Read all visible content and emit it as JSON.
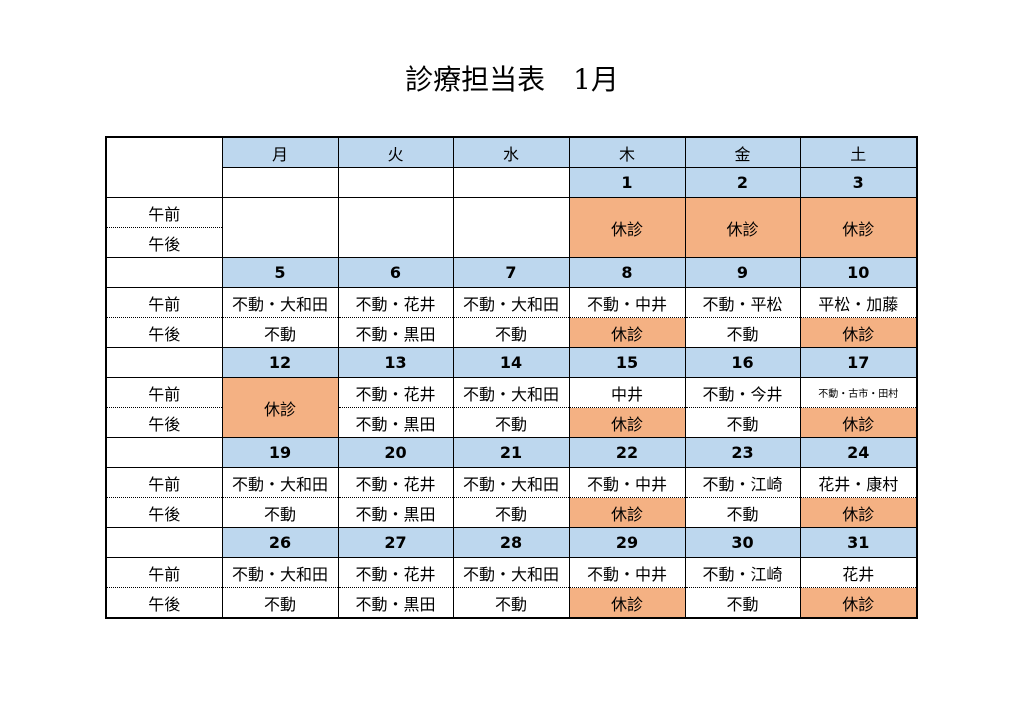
{
  "title": "診療担当表　1月",
  "weekdays": [
    "月",
    "火",
    "水",
    "木",
    "金",
    "土"
  ],
  "rows": {
    "am": "午前",
    "pm": "午後"
  },
  "colors": {
    "header_blue": "#bdd7ee",
    "closed_orange": "#f4b183"
  },
  "week0": {
    "dates": [
      "",
      "",
      "",
      "1",
      "2",
      "3"
    ],
    "closed": "休診"
  },
  "weeks": [
    {
      "dates": [
        "5",
        "6",
        "7",
        "8",
        "9",
        "10"
      ],
      "am": [
        "不動・大和田",
        "不動・花井",
        "不動・大和田",
        "不動・中井",
        "不動・平松",
        "平松・加藤"
      ],
      "pm": [
        "不動",
        "不動・黒田",
        "不動",
        "休診",
        "不動",
        "休診"
      ]
    },
    {
      "dates": [
        "12",
        "13",
        "14",
        "15",
        "16",
        "17"
      ],
      "mon_closed": "休診",
      "am": [
        "",
        "不動・花井",
        "不動・大和田",
        "中井",
        "不動・今井",
        "不動・古市・田村"
      ],
      "pm": [
        "",
        "不動・黒田",
        "不動",
        "休診",
        "不動",
        "休診"
      ]
    },
    {
      "dates": [
        "19",
        "20",
        "21",
        "22",
        "23",
        "24"
      ],
      "am": [
        "不動・大和田",
        "不動・花井",
        "不動・大和田",
        "不動・中井",
        "不動・江崎",
        "花井・康村"
      ],
      "pm": [
        "不動",
        "不動・黒田",
        "不動",
        "休診",
        "不動",
        "休診"
      ]
    },
    {
      "dates": [
        "26",
        "27",
        "28",
        "29",
        "30",
        "31"
      ],
      "am": [
        "不動・大和田",
        "不動・花井",
        "不動・大和田",
        "不動・中井",
        "不動・江崎",
        "花井"
      ],
      "pm": [
        "不動",
        "不動・黒田",
        "不動",
        "休診",
        "不動",
        "休診"
      ]
    }
  ]
}
